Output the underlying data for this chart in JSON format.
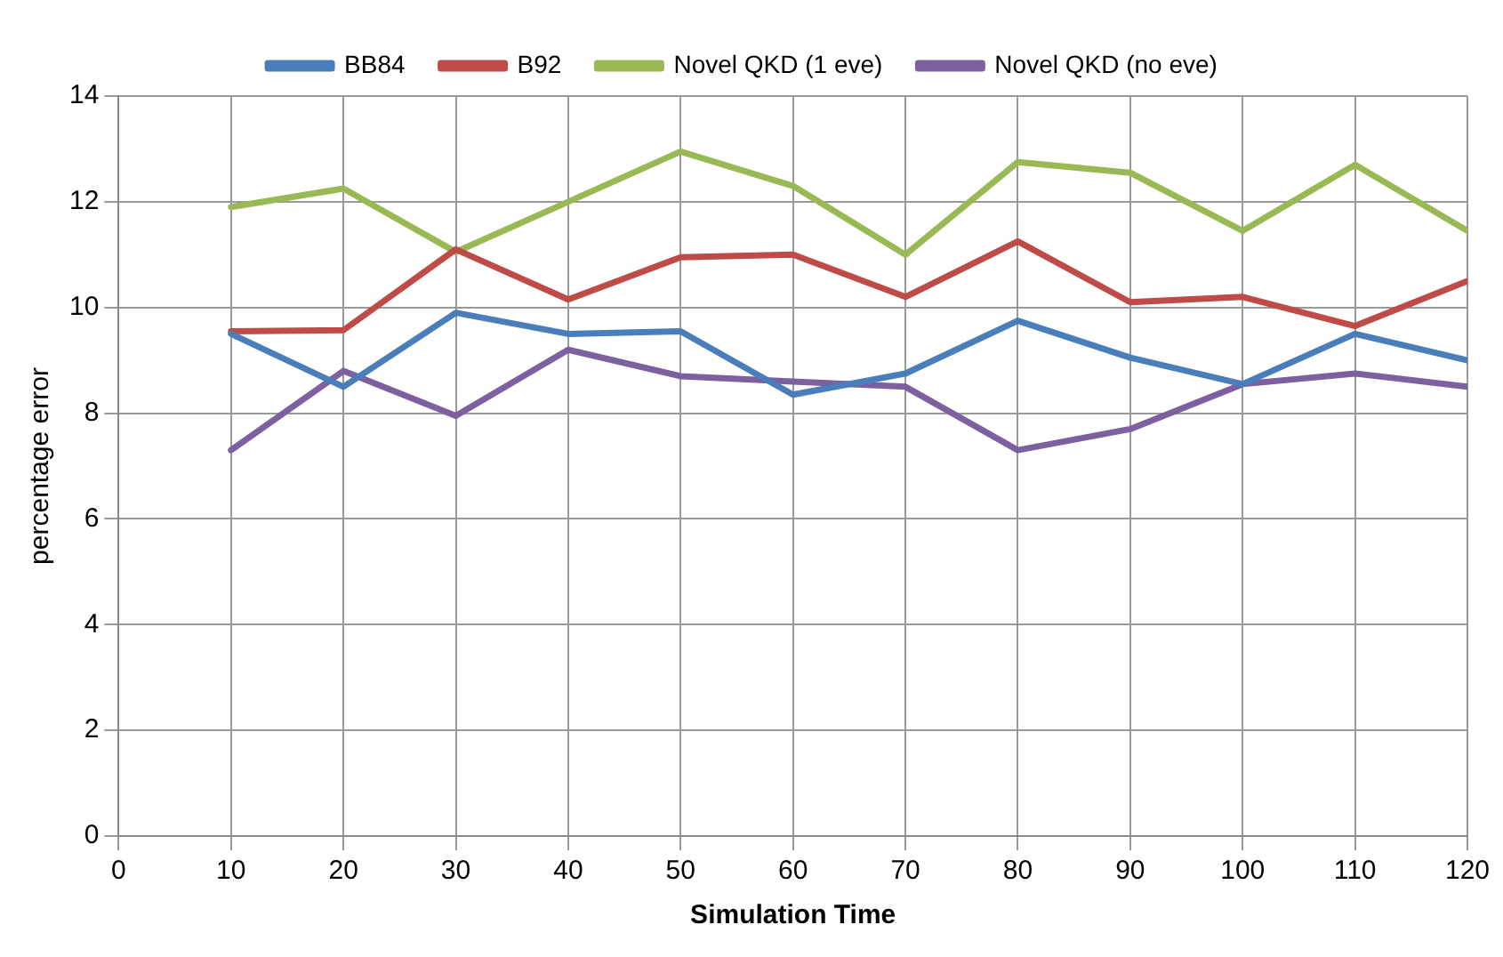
{
  "chart_data": {
    "type": "line",
    "xlabel": "Simulation Time",
    "ylabel": "percentage error",
    "x": [
      10,
      20,
      30,
      40,
      50,
      60,
      70,
      80,
      90,
      100,
      110,
      120
    ],
    "xlim": [
      0,
      120
    ],
    "xticks": [
      0,
      10,
      20,
      30,
      40,
      50,
      60,
      70,
      80,
      90,
      100,
      110,
      120
    ],
    "ylim": [
      0,
      14
    ],
    "yticks": [
      0,
      2,
      4,
      6,
      8,
      10,
      12,
      14
    ],
    "grid": true,
    "legend": "top",
    "marker": "none",
    "line_style": "solid",
    "series": [
      {
        "name": "BB84",
        "color": "#4a7ebb",
        "values": [
          9.5,
          8.5,
          9.9,
          9.5,
          9.55,
          8.35,
          8.75,
          9.75,
          9.05,
          8.55,
          9.5,
          9.0
        ]
      },
      {
        "name": "B92",
        "color": "#be4b48",
        "values": [
          9.55,
          9.57,
          11.1,
          10.15,
          10.95,
          11.0,
          10.2,
          11.25,
          10.1,
          10.2,
          9.65,
          10.5
        ]
      },
      {
        "name": "Novel QKD (1 eve)",
        "color": "#98b954",
        "values": [
          11.9,
          12.25,
          11.05,
          12.0,
          12.95,
          12.3,
          11.0,
          12.75,
          12.55,
          11.45,
          12.7,
          11.45
        ]
      },
      {
        "name": "Novel QKD (no eve)",
        "color": "#7d60a0",
        "values": [
          7.3,
          8.8,
          7.95,
          9.2,
          8.7,
          8.6,
          8.5,
          7.3,
          7.7,
          8.55,
          8.75,
          8.5
        ]
      }
    ]
  }
}
